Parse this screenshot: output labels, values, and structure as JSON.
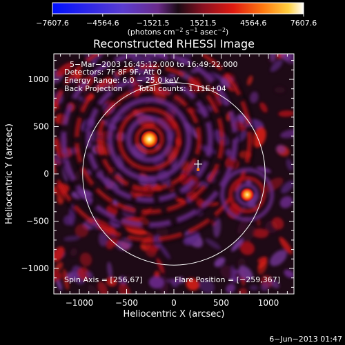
{
  "chart_data": {
    "type": "heatmap",
    "title": "Reconstructed RHESSI Image",
    "xlabel": "Heliocentric X (arcsec)",
    "ylabel": "Heliocentric Y (arcsec)",
    "xlim": [
      -1270,
      1270
    ],
    "ylim": [
      -1270,
      1270
    ],
    "xticks": [
      -1000,
      -500,
      0,
      500,
      1000
    ],
    "xtick_labels": [
      "−1000",
      "−500",
      "0",
      "500",
      "1000"
    ],
    "yticks": [
      -1000,
      -500,
      0,
      500,
      1000
    ],
    "ytick_labels": [
      "−1000",
      "−500",
      "0",
      "500",
      "1000"
    ],
    "colorbar": {
      "min": -7607.6,
      "max": 7607.6,
      "ticks": [
        -7607.6,
        -4564.6,
        -1521.5,
        1521.5,
        4564.6,
        7607.6
      ],
      "tick_labels": [
        "−7607.6",
        "−4564.6",
        "−1521.5",
        "1521.5",
        "4564.6",
        "7607.6"
      ],
      "unit_text": "(photons cm",
      "unit_sup1": "−2",
      "unit_mid": " s",
      "unit_sup2": "−1",
      "unit_end": " asec",
      "unit_sup3": "−2",
      "unit_close": ")"
    },
    "annotations": {
      "time_range": "5−Mar−2003 16:45:12.000 to 16:49:22.000",
      "detectors": "Detectors: 7F 8F 9F, Att 0",
      "energy": "Energy Range: 6.0 − 25.0 keV",
      "method": "Back Projection",
      "counts": "Total counts: 1.11E+04",
      "spin_axis": "Spin Axis = [256,67]",
      "flare_position": "Flare Position = [−259,367]"
    },
    "sources": [
      {
        "x": -259,
        "y": 367,
        "intensity": 1.0
      },
      {
        "x": 775,
        "y": -220,
        "intensity": 0.7
      }
    ],
    "spin_axis": {
      "x": 256,
      "y": 67
    },
    "solar_limb_radius": 965
  },
  "footer": {
    "date": "6−Jun−2013 01:47"
  }
}
